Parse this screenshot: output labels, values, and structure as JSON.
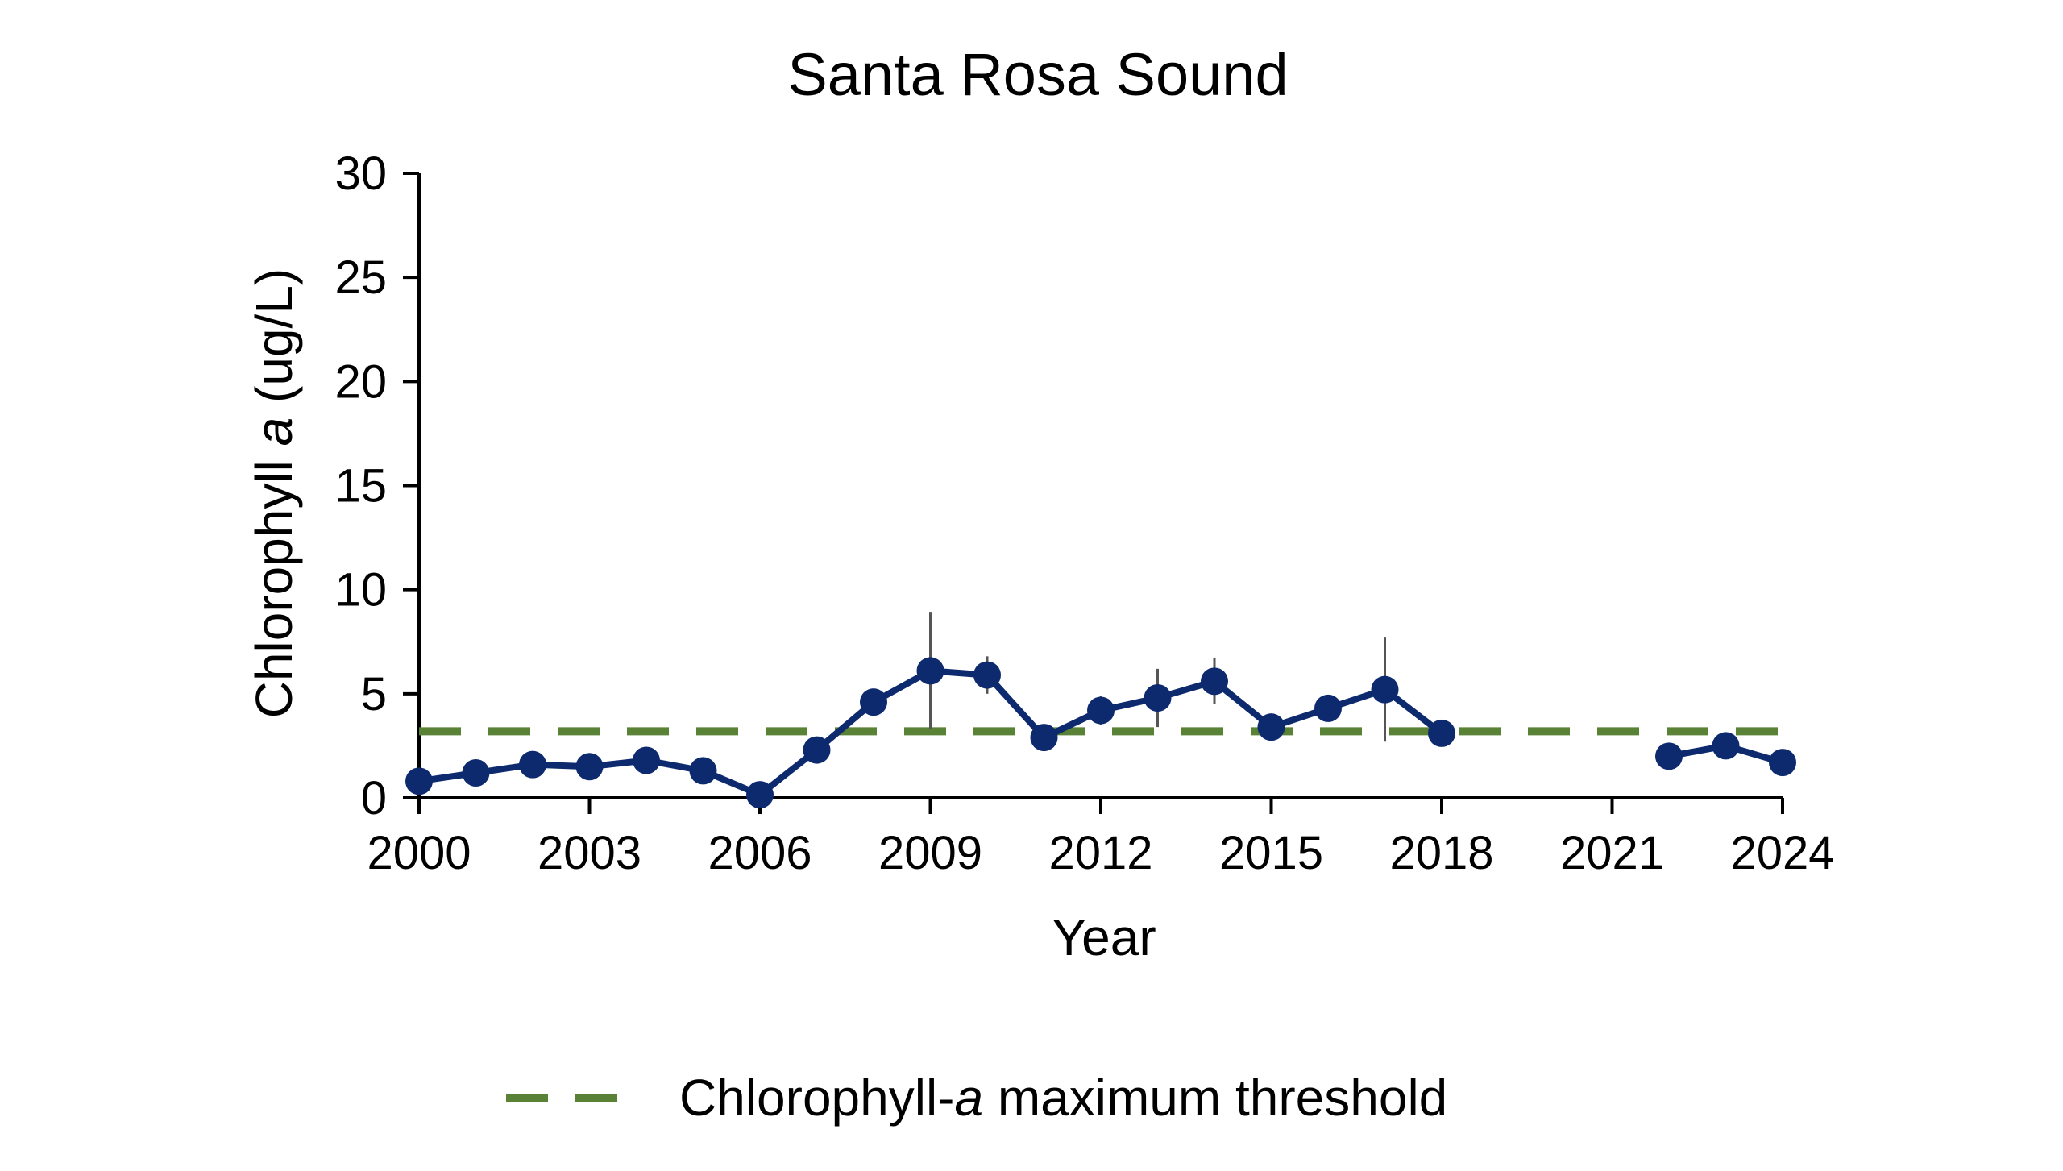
{
  "chart_data": {
    "type": "line",
    "title": "Santa Rosa Sound",
    "xlabel": "Year",
    "ylabel_parts": [
      "Chlorophyll ",
      "a",
      " (ug/L)"
    ],
    "xlim": [
      2000,
      2024
    ],
    "ylim": [
      0,
      30
    ],
    "x_ticks": [
      2000,
      2003,
      2006,
      2009,
      2012,
      2015,
      2018,
      2021,
      2024
    ],
    "y_ticks": [
      0,
      5,
      10,
      15,
      20,
      25,
      30
    ],
    "grid": false,
    "series": [
      {
        "color": "#0d2a6e",
        "x": [
          2000,
          2001,
          2002,
          2003,
          2004,
          2005,
          2006,
          2007,
          2008,
          2009,
          2010,
          2011,
          2012,
          2013,
          2014,
          2015,
          2016,
          2017,
          2018,
          2019,
          2020,
          2021,
          2022,
          2023,
          2024
        ],
        "y": [
          0.8,
          1.2,
          1.6,
          1.5,
          1.8,
          1.3,
          0.15,
          2.3,
          4.6,
          6.1,
          5.9,
          2.9,
          4.2,
          4.8,
          5.6,
          3.4,
          4.3,
          5.2,
          3.1,
          null,
          null,
          null,
          2.0,
          2.5,
          1.7
        ],
        "error": [
          null,
          null,
          null,
          null,
          null,
          null,
          null,
          null,
          null,
          2.8,
          0.9,
          null,
          0.7,
          1.4,
          1.1,
          null,
          null,
          2.5,
          null,
          null,
          null,
          null,
          null,
          null,
          null
        ]
      }
    ],
    "threshold": {
      "name_parts": [
        "Chlorophyll-",
        "a",
        " maximum threshold"
      ],
      "value": 3.2,
      "color": "#5a8236",
      "style": "dashed"
    },
    "legend_position": "bottom-center"
  }
}
